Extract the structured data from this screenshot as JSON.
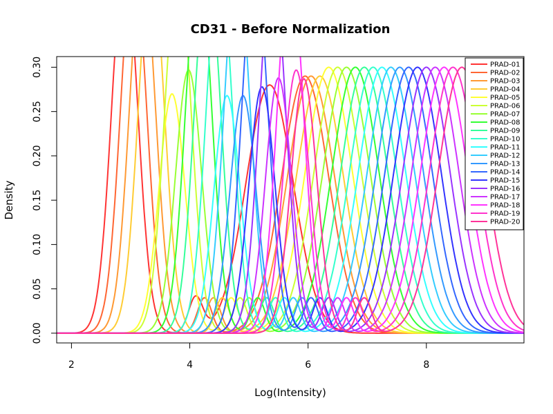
{
  "chart_data": {
    "type": "line",
    "title": "CD31 - Before Normalization",
    "xlabel": "Log(Intensity)",
    "ylabel": "Density",
    "xlim": [
      1.75,
      9.65
    ],
    "ylim": [
      -0.011,
      0.312
    ],
    "xticks": [
      2,
      4,
      6,
      8
    ],
    "yticks": [
      0.0,
      0.05,
      0.1,
      0.15,
      0.2,
      0.25,
      0.3
    ],
    "ytick_labels": [
      "0.00",
      "0.05",
      "0.10",
      "0.15",
      "0.20",
      "0.25",
      "0.30"
    ],
    "grid": false,
    "legend_position": "top-right",
    "series": [
      {
        "name": "PRAD-01",
        "color": "#ff3333",
        "modes": [
          [
            2.9,
            0.42,
            0.22
          ],
          [
            4.1,
            0.04,
            0.12
          ],
          [
            5.35,
            0.28,
            0.4
          ]
        ]
      },
      {
        "name": "PRAD-02",
        "color": "#ff6633",
        "modes": [
          [
            3.05,
            0.42,
            0.22
          ],
          [
            4.25,
            0.04,
            0.12
          ],
          [
            5.95,
            0.29,
            0.4
          ]
        ]
      },
      {
        "name": "PRAD-03",
        "color": "#ff9933",
        "modes": [
          [
            3.2,
            0.42,
            0.22
          ],
          [
            4.4,
            0.04,
            0.12
          ],
          [
            6.05,
            0.29,
            0.4
          ]
        ]
      },
      {
        "name": "PRAD-04",
        "color": "#ffcc33",
        "modes": [
          [
            3.35,
            0.42,
            0.22
          ],
          [
            4.55,
            0.04,
            0.12
          ],
          [
            6.2,
            0.29,
            0.4
          ]
        ]
      },
      {
        "name": "PRAD-05",
        "color": "#ffff33",
        "modes": [
          [
            3.7,
            0.27,
            0.22
          ],
          [
            4.7,
            0.04,
            0.12
          ],
          [
            6.35,
            0.3,
            0.4
          ]
        ]
      },
      {
        "name": "PRAD-06",
        "color": "#ccff33",
        "modes": [
          [
            3.8,
            0.42,
            0.22
          ],
          [
            4.85,
            0.04,
            0.12
          ],
          [
            6.5,
            0.3,
            0.4
          ]
        ]
      },
      {
        "name": "PRAD-07",
        "color": "#99ff33",
        "modes": [
          [
            3.98,
            0.297,
            0.22
          ],
          [
            5.0,
            0.04,
            0.12
          ],
          [
            6.65,
            0.3,
            0.4
          ]
        ]
      },
      {
        "name": "PRAD-08",
        "color": "#33ff33",
        "modes": [
          [
            4.15,
            0.42,
            0.22
          ],
          [
            5.15,
            0.04,
            0.12
          ],
          [
            6.8,
            0.3,
            0.4
          ]
        ]
      },
      {
        "name": "PRAD-09",
        "color": "#33ff99",
        "modes": [
          [
            4.3,
            0.42,
            0.22
          ],
          [
            5.3,
            0.04,
            0.12
          ],
          [
            6.95,
            0.3,
            0.4
          ]
        ]
      },
      {
        "name": "PRAD-10",
        "color": "#33ffcc",
        "modes": [
          [
            4.5,
            0.42,
            0.22
          ],
          [
            5.45,
            0.04,
            0.12
          ],
          [
            7.1,
            0.3,
            0.4
          ]
        ]
      },
      {
        "name": "PRAD-11",
        "color": "#33ffff",
        "modes": [
          [
            4.63,
            0.268,
            0.22
          ],
          [
            5.6,
            0.04,
            0.12
          ],
          [
            7.25,
            0.3,
            0.4
          ]
        ]
      },
      {
        "name": "PRAD-12",
        "color": "#33ccff",
        "modes": [
          [
            4.8,
            0.42,
            0.22
          ],
          [
            5.75,
            0.04,
            0.12
          ],
          [
            7.4,
            0.3,
            0.4
          ]
        ]
      },
      {
        "name": "PRAD-13",
        "color": "#3399ff",
        "modes": [
          [
            4.9,
            0.268,
            0.22
          ],
          [
            5.9,
            0.04,
            0.12
          ],
          [
            7.55,
            0.3,
            0.4
          ]
        ]
      },
      {
        "name": "PRAD-14",
        "color": "#3366ff",
        "modes": [
          [
            5.1,
            0.42,
            0.22
          ],
          [
            6.05,
            0.04,
            0.12
          ],
          [
            7.7,
            0.3,
            0.4
          ]
        ]
      },
      {
        "name": "PRAD-15",
        "color": "#3333ff",
        "modes": [
          [
            5.22,
            0.278,
            0.22
          ],
          [
            6.2,
            0.04,
            0.12
          ],
          [
            7.85,
            0.3,
            0.4
          ]
        ]
      },
      {
        "name": "PRAD-16",
        "color": "#9933ff",
        "modes": [
          [
            5.4,
            0.42,
            0.22
          ],
          [
            6.35,
            0.04,
            0.12
          ],
          [
            8.0,
            0.3,
            0.4
          ]
        ]
      },
      {
        "name": "PRAD-17",
        "color": "#cc33ff",
        "modes": [
          [
            5.5,
            0.288,
            0.22
          ],
          [
            6.5,
            0.04,
            0.12
          ],
          [
            8.15,
            0.3,
            0.4
          ]
        ]
      },
      {
        "name": "PRAD-18",
        "color": "#ff33ff",
        "modes": [
          [
            5.7,
            0.42,
            0.22
          ],
          [
            6.65,
            0.04,
            0.12
          ],
          [
            8.3,
            0.3,
            0.4
          ]
        ]
      },
      {
        "name": "PRAD-19",
        "color": "#ff33cc",
        "modes": [
          [
            5.8,
            0.297,
            0.22
          ],
          [
            6.8,
            0.04,
            0.12
          ],
          [
            8.45,
            0.3,
            0.4
          ]
        ]
      },
      {
        "name": "PRAD-20",
        "color": "#ff3399",
        "modes": [
          [
            5.93,
            0.287,
            0.22
          ],
          [
            6.95,
            0.04,
            0.12
          ],
          [
            8.6,
            0.3,
            0.4
          ]
        ]
      }
    ]
  }
}
